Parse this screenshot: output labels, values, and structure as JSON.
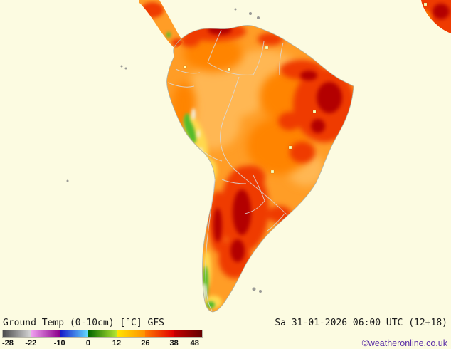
{
  "map": {
    "region": "South America",
    "model": "GFS",
    "parameter": "Ground Temp (0-10cm)",
    "colors": {
      "ocean": "#fcfbe1",
      "base_land": "#ff9d26",
      "warm_light": "#ffb752",
      "warm_deep": "#ff8400",
      "hot": "#ef3b00",
      "very_hot": "#b30000",
      "mild_yellow": "#ffd94d",
      "cool_green": "#54bb2a",
      "cold_white": "#f2f0e0",
      "border": "#d9d9d9",
      "coast": "#b3b3a3",
      "island_gray": "#9a9a96",
      "marker": "#ffffb3"
    }
  },
  "legend": {
    "unit": "°C",
    "ticks": [
      "-28",
      "-22",
      "-10",
      "0",
      "12",
      "26",
      "38",
      "48"
    ],
    "segments": [
      {
        "from": -28,
        "to": -22,
        "color_start": "#4a4a4a",
        "color_end": "#d8d8d8"
      },
      {
        "from": -22,
        "to": -10,
        "color_start": "#f0a0f0",
        "color_end": "#8a008a"
      },
      {
        "from": -10,
        "to": 0,
        "color_start": "#1414c8",
        "color_end": "#64dcff"
      },
      {
        "from": 0,
        "to": 12,
        "color_start": "#006400",
        "color_end": "#b4e632"
      },
      {
        "from": 12,
        "to": 26,
        "color_start": "#ffe600",
        "color_end": "#ff9000"
      },
      {
        "from": 26,
        "to": 38,
        "color_start": "#ff7800",
        "color_end": "#e10000"
      },
      {
        "from": 38,
        "to": 48,
        "color_start": "#c80000",
        "color_end": "#640000"
      }
    ]
  },
  "footer": {
    "title": "Ground Temp (0-10cm) [°C] GFS",
    "datetime": "Sa 31-01-2026 06:00 UTC (12+18)",
    "copyright": "©weatheronline.co.uk"
  }
}
